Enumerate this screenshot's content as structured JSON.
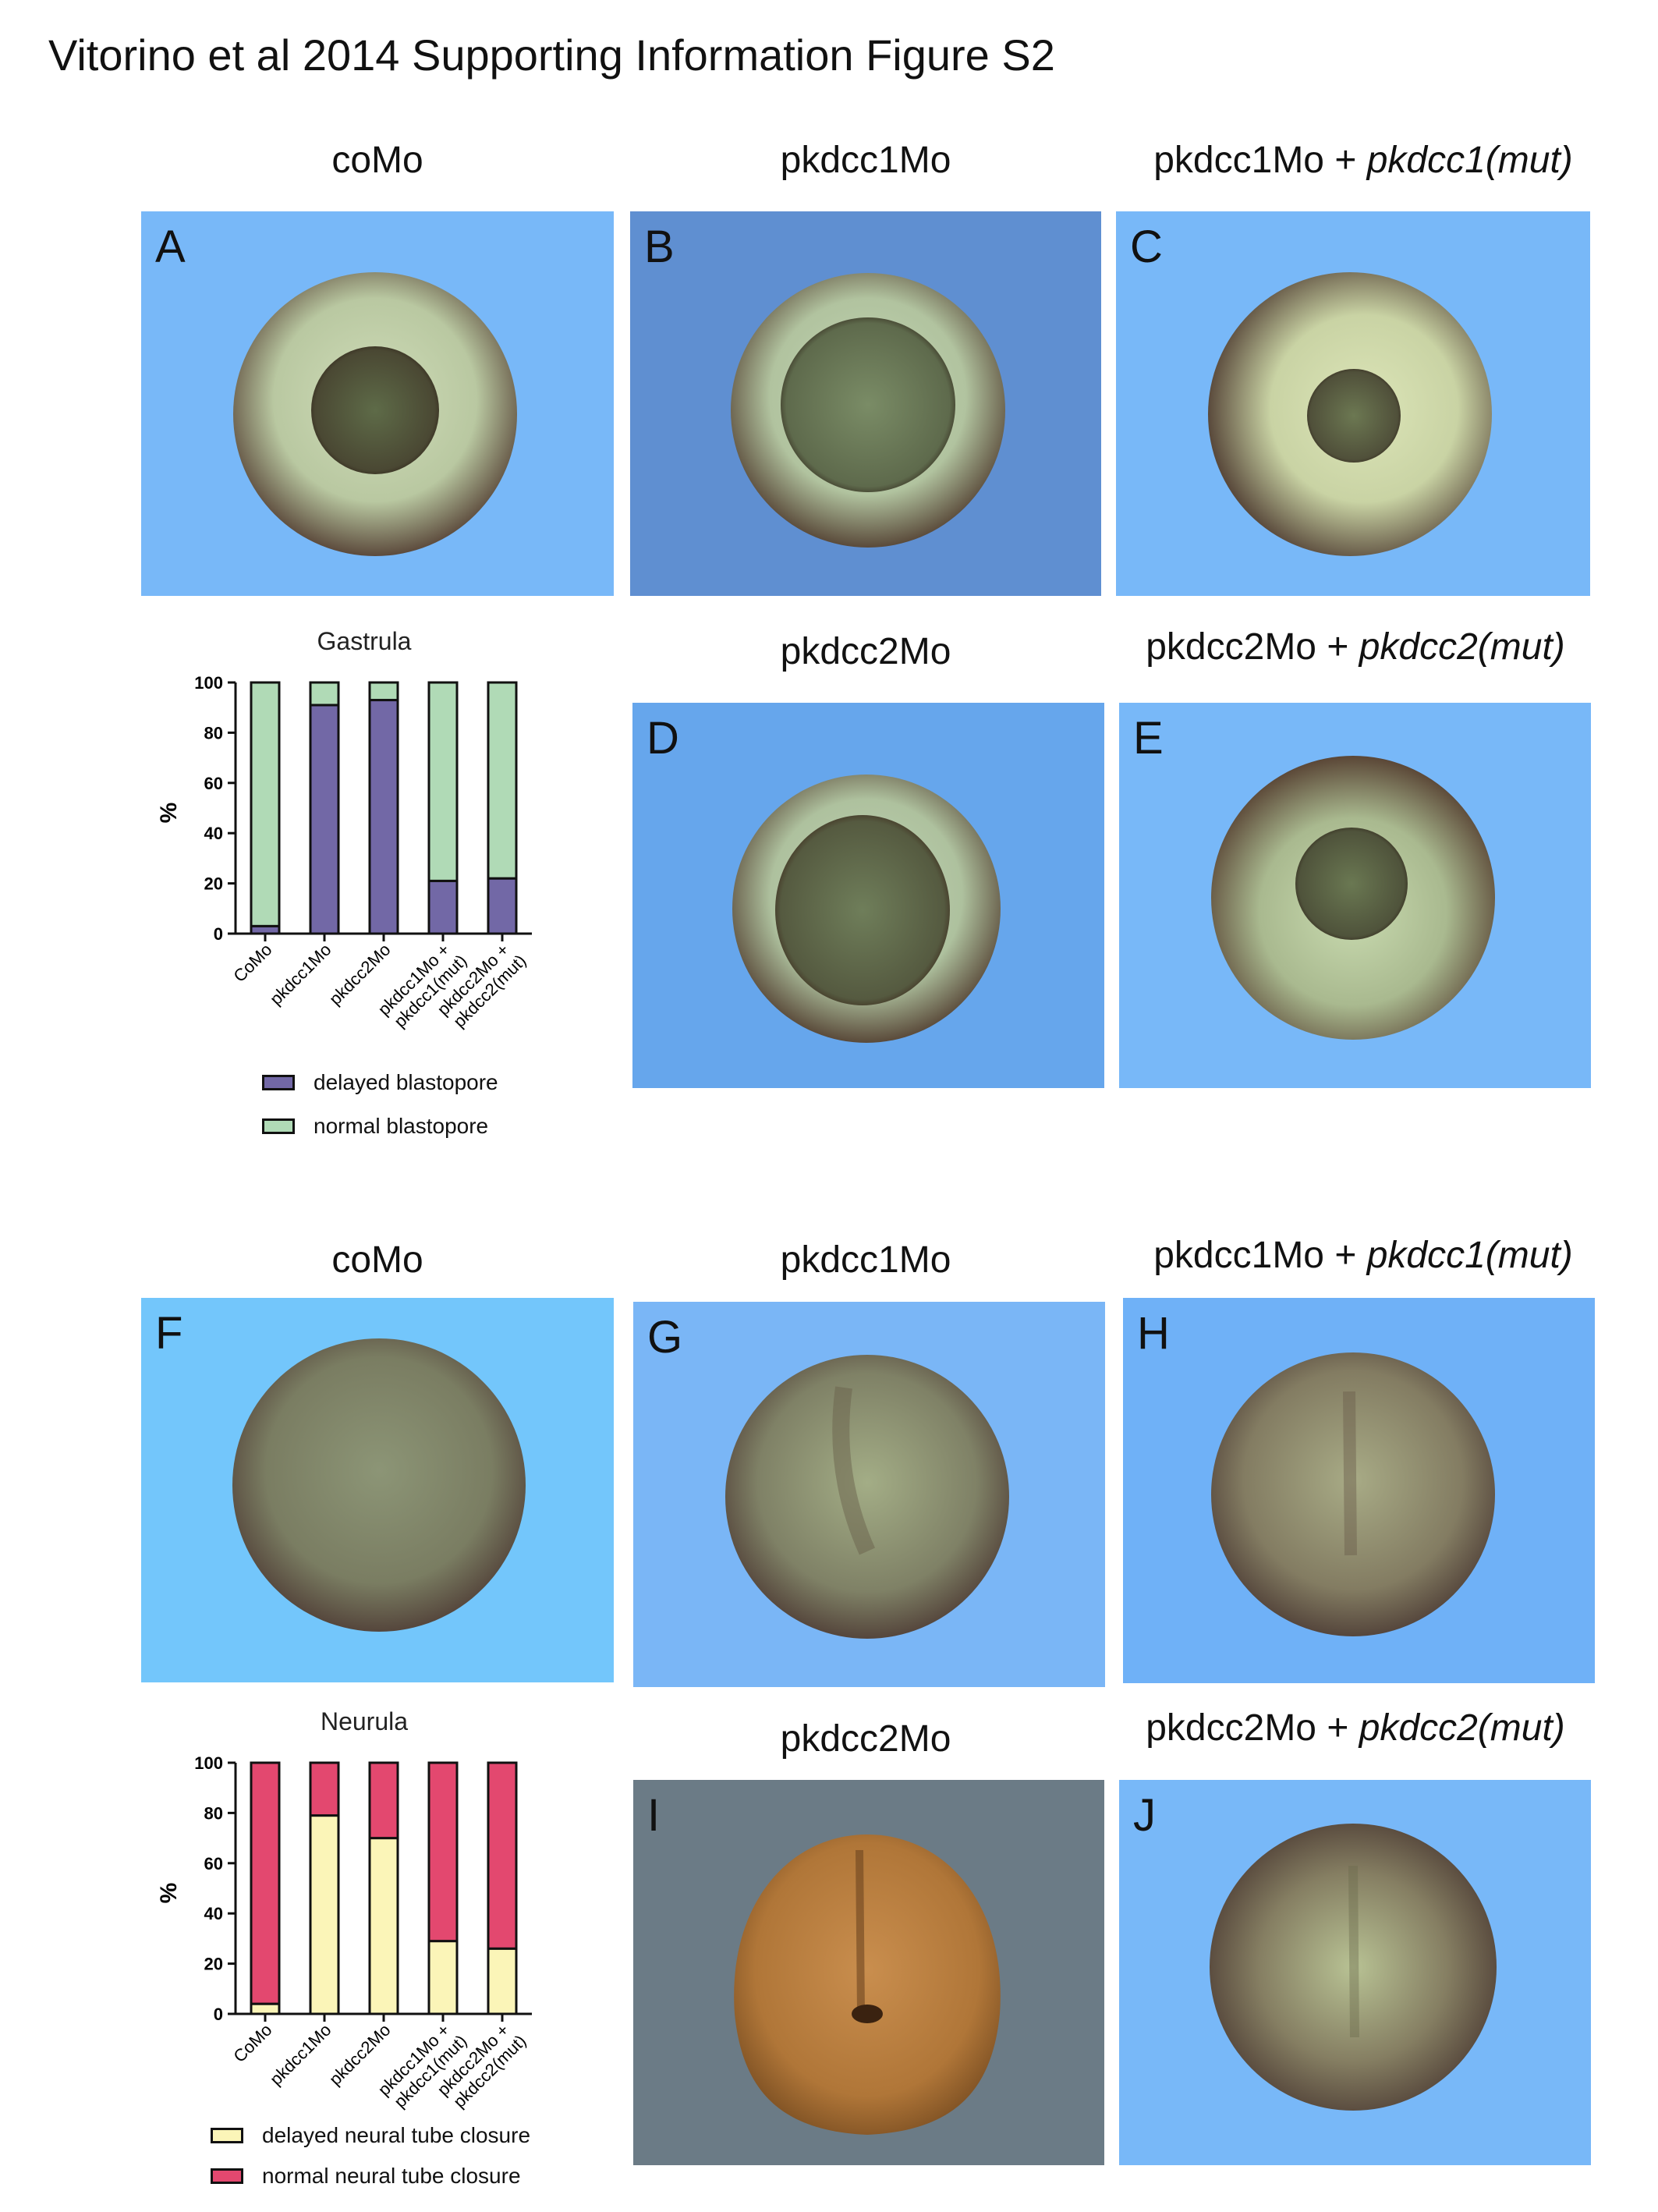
{
  "figure_title": "Vitorino et al 2014 Supporting Information Figure S2",
  "top_section": {
    "col_labels": {
      "a": "coMo",
      "b": "pkdcc1Mo",
      "c_plain": "pkdcc1Mo + ",
      "c_italic": "pkdcc1(mut)",
      "d": "pkdcc2Mo",
      "e_plain": "pkdcc2Mo + ",
      "e_italic": "pkdcc2(mut)"
    },
    "panels": [
      {
        "letter": "A",
        "bg": "#78b8f8"
      },
      {
        "letter": "B",
        "bg": "#5f8fd1"
      },
      {
        "letter": "C",
        "bg": "#78b8f8"
      },
      {
        "letter": "D",
        "bg": "#66a6ec"
      },
      {
        "letter": "E",
        "bg": "#78b8f8"
      }
    ]
  },
  "bottom_section": {
    "col_labels": {
      "f": "coMo",
      "g": "pkdcc1Mo",
      "h_plain": "pkdcc1Mo + ",
      "h_italic": "pkdcc1(mut)",
      "i": "pkdcc2Mo",
      "j_plain": "pkdcc2Mo + ",
      "j_italic": "pkdcc2(mut)"
    },
    "panels": [
      {
        "letter": "F",
        "bg": "#73c6fb"
      },
      {
        "letter": "G",
        "bg": "#7ab6f6"
      },
      {
        "letter": "H",
        "bg": "#6fb1f7"
      },
      {
        "letter": "I",
        "bg": "#6b7b86"
      },
      {
        "letter": "J",
        "bg": "#78b8f8"
      }
    ]
  },
  "chart_data": [
    {
      "type": "bar",
      "stacked": true,
      "title": "Gastrula",
      "ylabel": "%",
      "ylim": [
        0,
        100
      ],
      "yticks": [
        "0",
        "20",
        "40",
        "60",
        "80",
        "100"
      ],
      "categories": [
        "CoMo",
        "pkdcc1Mo",
        "pkdcc2Mo",
        "pkdcc1Mo +",
        "pkdcc2Mo +"
      ],
      "categories_line2": [
        "",
        "",
        "",
        "pkdcc1(mut)",
        "pkdcc2(mut)"
      ],
      "series": [
        {
          "name": "delayed blastopore",
          "color": "#7268a6",
          "values": [
            3,
            91,
            93,
            21,
            22
          ]
        },
        {
          "name": "normal blastopore",
          "color": "#b0dab6",
          "values": [
            97,
            9,
            7,
            79,
            78
          ]
        }
      ],
      "legend": "bottom"
    },
    {
      "type": "bar",
      "stacked": true,
      "title": "Neurula",
      "ylabel": "%",
      "ylim": [
        0,
        100
      ],
      "yticks": [
        "0",
        "20",
        "40",
        "60",
        "80",
        "100"
      ],
      "categories": [
        "CoMo",
        "pkdcc1Mo",
        "pkdcc2Mo",
        "pkdcc1Mo +",
        "pkdcc2Mo +"
      ],
      "categories_line2": [
        "",
        "",
        "",
        "pkdcc1(mut)",
        "pkdcc2(mut)"
      ],
      "series": [
        {
          "name": "delayed neural tube closure",
          "color": "#fbf5b8",
          "values": [
            4,
            79,
            70,
            29,
            26
          ]
        },
        {
          "name": "normal neural tube closure",
          "color": "#e3486f",
          "values": [
            96,
            21,
            30,
            71,
            74
          ]
        }
      ],
      "legend": "bottom"
    }
  ]
}
